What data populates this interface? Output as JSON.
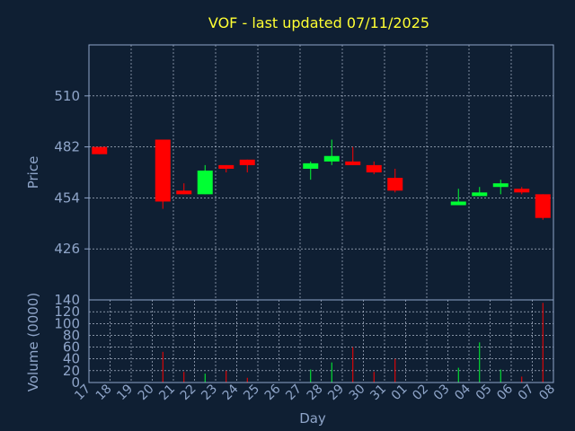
{
  "chart_data": {
    "type": "candlestick",
    "title": "VOF - last updated 07/11/2025",
    "xlabel": "Day",
    "price_ylabel": "Price",
    "volume_ylabel": "Volume (0000)",
    "x_ticks": [
      "17",
      "18",
      "19",
      "20",
      "21",
      "22",
      "23",
      "24",
      "25",
      "26",
      "27",
      "28",
      "29",
      "30",
      "31",
      "01",
      "02",
      "03",
      "04",
      "05",
      "06",
      "07",
      "08"
    ],
    "price_ylim": [
      398,
      538
    ],
    "price_ticks": [
      426,
      454,
      482,
      510
    ],
    "volume_ylim": [
      0,
      140
    ],
    "volume_ticks": [
      0,
      20,
      40,
      60,
      80,
      100,
      120,
      140
    ],
    "grid": true,
    "up_color": "#00ff33",
    "down_color": "#ff0000",
    "candles": [
      {
        "day": "17",
        "open": 482,
        "high": 482,
        "low": 478,
        "close": 478,
        "volume": 0
      },
      {
        "day": "20",
        "open": 486,
        "high": 486,
        "low": 448,
        "close": 452,
        "volume": 52
      },
      {
        "day": "21",
        "open": 458,
        "high": 462,
        "low": 456,
        "close": 456,
        "volume": 18
      },
      {
        "day": "22",
        "open": 456,
        "high": 472,
        "low": 456,
        "close": 469,
        "volume": 15
      },
      {
        "day": "23",
        "open": 472,
        "high": 472,
        "low": 468,
        "close": 470,
        "volume": 20
      },
      {
        "day": "24",
        "open": 475,
        "high": 475,
        "low": 468,
        "close": 472,
        "volume": 8
      },
      {
        "day": "27",
        "open": 470,
        "high": 474,
        "low": 464,
        "close": 473,
        "volume": 22
      },
      {
        "day": "28",
        "open": 474,
        "high": 486,
        "low": 472,
        "close": 477,
        "volume": 34
      },
      {
        "day": "29",
        "open": 474,
        "high": 482,
        "low": 472,
        "close": 472,
        "volume": 60
      },
      {
        "day": "30",
        "open": 472,
        "high": 474,
        "low": 467,
        "close": 468,
        "volume": 18
      },
      {
        "day": "31",
        "open": 465,
        "high": 470,
        "low": 457,
        "close": 458,
        "volume": 40
      },
      {
        "day": "03",
        "open": 450,
        "high": 459,
        "low": 450,
        "close": 452,
        "volume": 25
      },
      {
        "day": "04",
        "open": 455,
        "high": 460,
        "low": 455,
        "close": 457,
        "volume": 68
      },
      {
        "day": "05",
        "open": 460,
        "high": 464,
        "low": 456,
        "close": 462,
        "volume": 22
      },
      {
        "day": "06",
        "open": 459,
        "high": 460,
        "low": 456,
        "close": 457,
        "volume": 10
      },
      {
        "day": "07",
        "open": 456,
        "high": 456,
        "low": 442,
        "close": 443,
        "volume": 135
      }
    ]
  }
}
